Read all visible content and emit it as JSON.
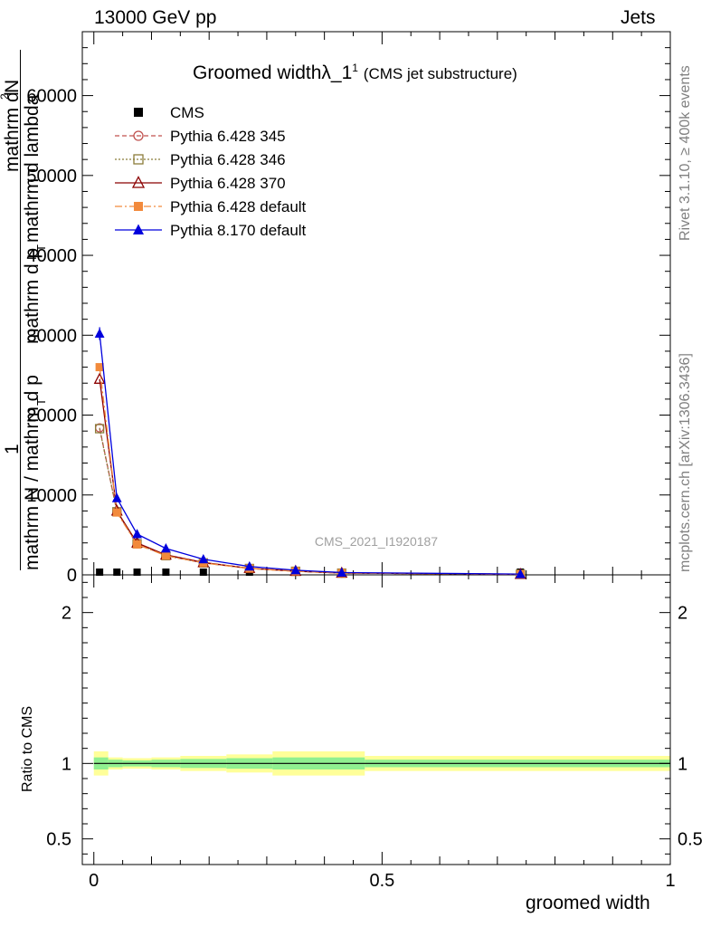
{
  "header": {
    "left": "13000 GeV pp",
    "right": "Jets"
  },
  "side": {
    "rivet": "Rivet 3.1.10, ≥ 400k events",
    "mcplots": "mcplots.cern.ch [arXiv:1306.3436]"
  },
  "watermark": "CMS_2021_I1920187",
  "ylabel_main": {
    "numerator_1": "1",
    "denominator_1": "mathrm N / mathrm d p",
    "sub_T1": "T",
    "numerator_2": "mathrm d",
    "sup_2": "2",
    "numerator_2b": "N",
    "denominator_2": "mathrm d p",
    "sub_T2": "T",
    "denominator_2b": " mathrm d lambda"
  },
  "ylabel_ratio": "Ratio to CMS",
  "xlabel": "groomed width",
  "title": {
    "main": "Groomed width",
    "lambda": "λ_1",
    "sup": "1",
    "sub": "(CMS jet substructure)"
  },
  "colors": {
    "cms": "#000000",
    "p345": "#c0504d",
    "p346": "#8b7d3a",
    "p370": "#8b0000",
    "pdef": "#f28a3c",
    "p8": "#0000dd",
    "band_inner": "#90f090",
    "band_outer": "#ffff99"
  },
  "chart_data": [
    {
      "type": "line",
      "title": "Groomed widthλ_1 1 (CMS jet substructure)",
      "xlabel": "groomed width",
      "ylabel": "1 / mathrm N / mathrm d p_T  mathrm d^2N / mathrm d p_T mathrm d lambda",
      "xlim": [
        -0.02,
        1.0
      ],
      "ylim": [
        0,
        68000
      ],
      "x_ticks": [
        "0",
        "0.5",
        "1"
      ],
      "y_ticks": [
        "0",
        "10000",
        "20000",
        "30000",
        "40000",
        "50000",
        "60000"
      ],
      "legend_position": "top-left",
      "grid": false,
      "series": [
        {
          "name": "CMS",
          "key": "cms",
          "marker": "square-filled",
          "x": [
            0.01,
            0.04,
            0.075,
            0.125,
            0.19,
            0.27,
            0.35,
            0.43,
            0.74
          ],
          "y": [
            0,
            0,
            0,
            0,
            0,
            0,
            0,
            0,
            0
          ]
        },
        {
          "name": "Pythia 6.428 345",
          "key": "p345",
          "marker": "circle-open",
          "x": [
            0.01,
            0.04,
            0.075,
            0.125,
            0.19,
            0.27,
            0.35,
            0.43,
            0.74
          ],
          "y": [
            18400,
            7900,
            3900,
            2400,
            1500,
            800,
            450,
            220,
            80
          ]
        },
        {
          "name": "Pythia 6.428 346",
          "key": "p346",
          "marker": "square-open",
          "x": [
            0.01,
            0.04,
            0.075,
            0.125,
            0.19,
            0.27,
            0.35,
            0.43,
            0.74
          ],
          "y": [
            18300,
            7900,
            3900,
            2400,
            1500,
            800,
            450,
            220,
            80
          ]
        },
        {
          "name": "Pythia 6.428 370",
          "key": "p370",
          "marker": "triangle-open",
          "x": [
            0.01,
            0.04,
            0.075,
            0.125,
            0.19,
            0.27,
            0.35,
            0.43,
            0.74
          ],
          "y": [
            24500,
            8000,
            4000,
            2500,
            1550,
            820,
            460,
            230,
            80
          ]
        },
        {
          "name": "Pythia 6.428 default",
          "key": "pdef",
          "marker": "square-filled",
          "x": [
            0.01,
            0.04,
            0.075,
            0.125,
            0.19,
            0.27,
            0.35,
            0.43,
            0.74
          ],
          "y": [
            26000,
            7800,
            3800,
            2400,
            1500,
            800,
            450,
            220,
            80
          ]
        },
        {
          "name": "Pythia 8.170 default",
          "key": "p8",
          "marker": "triangle-filled",
          "x": [
            0.01,
            0.04,
            0.075,
            0.125,
            0.19,
            0.27,
            0.35,
            0.43,
            0.74
          ],
          "y": [
            30200,
            9600,
            5100,
            3300,
            1950,
            1050,
            580,
            290,
            100
          ]
        }
      ]
    },
    {
      "type": "area",
      "ylabel": "Ratio to CMS",
      "xlabel": "groomed width",
      "xlim": [
        -0.02,
        1.0
      ],
      "ylim": [
        0.33,
        2.25
      ],
      "x_ticks": [
        "0",
        "0.5",
        "1"
      ],
      "y_ticks": [
        "0.5",
        "1",
        "2"
      ],
      "reference_line": 1,
      "bins": [
        {
          "x0": 0.0,
          "x1": 0.025,
          "inner": [
            0.96,
            1.04
          ],
          "outer": [
            0.92,
            1.08
          ]
        },
        {
          "x0": 0.025,
          "x1": 0.05,
          "inner": [
            0.975,
            1.025
          ],
          "outer": [
            0.96,
            1.04
          ]
        },
        {
          "x0": 0.05,
          "x1": 0.1,
          "inner": [
            0.98,
            1.02
          ],
          "outer": [
            0.965,
            1.035
          ]
        },
        {
          "x0": 0.1,
          "x1": 0.15,
          "inner": [
            0.975,
            1.025
          ],
          "outer": [
            0.96,
            1.04
          ]
        },
        {
          "x0": 0.15,
          "x1": 0.23,
          "inner": [
            0.97,
            1.03
          ],
          "outer": [
            0.95,
            1.05
          ]
        },
        {
          "x0": 0.23,
          "x1": 0.31,
          "inner": [
            0.965,
            1.035
          ],
          "outer": [
            0.94,
            1.06
          ]
        },
        {
          "x0": 0.31,
          "x1": 0.47,
          "inner": [
            0.96,
            1.04
          ],
          "outer": [
            0.92,
            1.08
          ]
        },
        {
          "x0": 0.47,
          "x1": 1.0,
          "inner": [
            0.975,
            1.025
          ],
          "outer": [
            0.95,
            1.05
          ]
        }
      ]
    }
  ]
}
